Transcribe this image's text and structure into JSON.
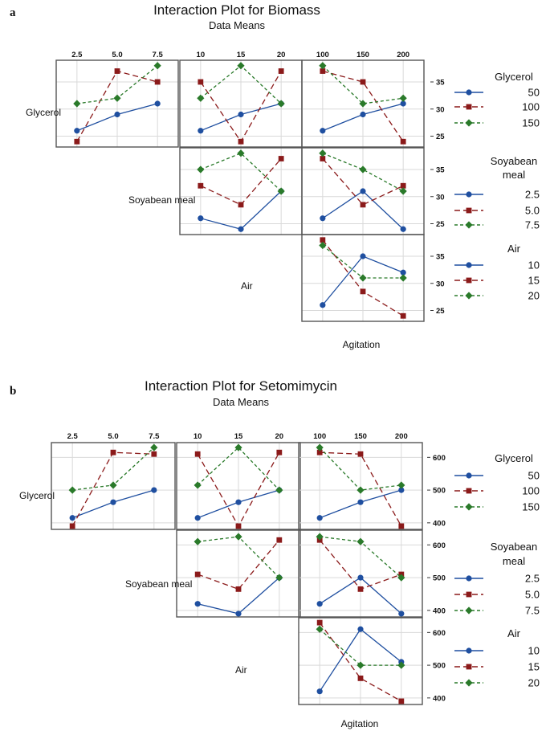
{
  "chart_data": [
    {
      "type": "line",
      "panel_letter": "a",
      "title": "Interaction Plot for Biomass",
      "subtitle": "Data Means",
      "xlabel": "Agitation",
      "y_ticks": [
        25,
        30,
        35
      ],
      "ylim": [
        23,
        39
      ],
      "factors": [
        {
          "name": "Glycerol",
          "levels": [
            "50",
            "100",
            "150"
          ]
        },
        {
          "name": "Soyabean meal",
          "levels": [
            "2.5",
            "5.0",
            "7.5"
          ]
        },
        {
          "name": "Air",
          "levels": [
            "10",
            "15",
            "20"
          ]
        },
        {
          "name": "Agitation",
          "levels": [
            "100",
            "150",
            "200"
          ]
        }
      ],
      "column_tick_labels": [
        [
          "2.5",
          "5.0",
          "7.5"
        ],
        [
          "10",
          "15",
          "20"
        ],
        [
          "100",
          "150",
          "200"
        ]
      ],
      "legends": [
        {
          "title": "Glycerol",
          "title_lines": [
            "Glycerol"
          ],
          "levels": [
            "50",
            "100",
            "150"
          ]
        },
        {
          "title": "Soyabean meal",
          "title_lines": [
            "Soyabean",
            "meal"
          ],
          "levels": [
            "2.5",
            "5.0",
            "7.5"
          ]
        },
        {
          "title": "Air",
          "title_lines": [
            "Air"
          ],
          "levels": [
            "10",
            "15",
            "20"
          ]
        }
      ],
      "cells": [
        {
          "row": 0,
          "col": 0,
          "series": [
            {
              "name": "50",
              "values": [
                26,
                29,
                31
              ]
            },
            {
              "name": "100",
              "values": [
                24,
                37,
                35
              ]
            },
            {
              "name": "150",
              "values": [
                31,
                32,
                38
              ]
            }
          ]
        },
        {
          "row": 0,
          "col": 1,
          "series": [
            {
              "name": "50",
              "values": [
                26,
                29,
                31
              ]
            },
            {
              "name": "100",
              "values": [
                35,
                24,
                37
              ]
            },
            {
              "name": "150",
              "values": [
                32,
                38,
                31
              ]
            }
          ]
        },
        {
          "row": 0,
          "col": 2,
          "series": [
            {
              "name": "50",
              "values": [
                26,
                29,
                31
              ]
            },
            {
              "name": "100",
              "values": [
                37,
                35,
                24
              ]
            },
            {
              "name": "150",
              "values": [
                38,
                31,
                32
              ]
            }
          ]
        },
        {
          "row": 1,
          "col": 1,
          "series": [
            {
              "name": "2.5",
              "values": [
                26,
                24,
                31
              ]
            },
            {
              "name": "5.0",
              "values": [
                32,
                28.5,
                37
              ]
            },
            {
              "name": "7.5",
              "values": [
                35,
                38,
                31
              ]
            }
          ]
        },
        {
          "row": 1,
          "col": 2,
          "series": [
            {
              "name": "2.5",
              "values": [
                26,
                31,
                24
              ]
            },
            {
              "name": "5.0",
              "values": [
                37,
                28.5,
                32
              ]
            },
            {
              "name": "7.5",
              "values": [
                38,
                35,
                31
              ]
            }
          ]
        },
        {
          "row": 2,
          "col": 2,
          "series": [
            {
              "name": "10",
              "values": [
                26,
                35,
                32
              ]
            },
            {
              "name": "15",
              "values": [
                38,
                28.5,
                24
              ]
            },
            {
              "name": "20",
              "values": [
                37,
                31,
                31
              ]
            }
          ]
        }
      ]
    },
    {
      "type": "line",
      "panel_letter": "b",
      "title": "Interaction Plot for Setomimycin",
      "subtitle": "Data Means",
      "xlabel": "Agitation",
      "y_ticks": [
        400,
        500,
        600
      ],
      "ylim": [
        380,
        645
      ],
      "factors": [
        {
          "name": "Glycerol",
          "levels": [
            "50",
            "100",
            "150"
          ]
        },
        {
          "name": "Soyabean meal",
          "levels": [
            "2.5",
            "5.0",
            "7.5"
          ]
        },
        {
          "name": "Air",
          "levels": [
            "10",
            "15",
            "20"
          ]
        },
        {
          "name": "Agitation",
          "levels": [
            "100",
            "150",
            "200"
          ]
        }
      ],
      "column_tick_labels": [
        [
          "2.5",
          "5.0",
          "7.5"
        ],
        [
          "10",
          "15",
          "20"
        ],
        [
          "100",
          "150",
          "200"
        ]
      ],
      "legends": [
        {
          "title": "Glycerol",
          "title_lines": [
            "Glycerol"
          ],
          "levels": [
            "50",
            "100",
            "150"
          ]
        },
        {
          "title": "Soyabean meal",
          "title_lines": [
            "Soyabean",
            "meal"
          ],
          "levels": [
            "2.5",
            "5.0",
            "7.5"
          ]
        },
        {
          "title": "Air",
          "title_lines": [
            "Air"
          ],
          "levels": [
            "10",
            "15",
            "20"
          ]
        }
      ],
      "cells": [
        {
          "row": 0,
          "col": 0,
          "series": [
            {
              "name": "50",
              "values": [
                415,
                463,
                500
              ]
            },
            {
              "name": "100",
              "values": [
                390,
                615,
                610
              ]
            },
            {
              "name": "150",
              "values": [
                500,
                515,
                630
              ]
            }
          ]
        },
        {
          "row": 0,
          "col": 1,
          "series": [
            {
              "name": "50",
              "values": [
                415,
                463,
                500
              ]
            },
            {
              "name": "100",
              "values": [
                610,
                390,
                615
              ]
            },
            {
              "name": "150",
              "values": [
                515,
                630,
                500
              ]
            }
          ]
        },
        {
          "row": 0,
          "col": 2,
          "series": [
            {
              "name": "50",
              "values": [
                415,
                463,
                500
              ]
            },
            {
              "name": "100",
              "values": [
                615,
                610,
                390
              ]
            },
            {
              "name": "150",
              "values": [
                630,
                500,
                515
              ]
            }
          ]
        },
        {
          "row": 1,
          "col": 1,
          "series": [
            {
              "name": "2.5",
              "values": [
                420,
                390,
                500
              ]
            },
            {
              "name": "5.0",
              "values": [
                510,
                465,
                615
              ]
            },
            {
              "name": "7.5",
              "values": [
                610,
                625,
                500
              ]
            }
          ]
        },
        {
          "row": 1,
          "col": 2,
          "series": [
            {
              "name": "2.5",
              "values": [
                420,
                500,
                390
              ]
            },
            {
              "name": "5.0",
              "values": [
                615,
                465,
                510
              ]
            },
            {
              "name": "7.5",
              "values": [
                625,
                610,
                500
              ]
            }
          ]
        },
        {
          "row": 2,
          "col": 2,
          "series": [
            {
              "name": "10",
              "values": [
                420,
                610,
                510
              ]
            },
            {
              "name": "15",
              "values": [
                630,
                460,
                390
              ]
            },
            {
              "name": "20",
              "values": [
                610,
                500,
                500
              ]
            }
          ]
        }
      ]
    }
  ],
  "series_style": [
    {
      "color": "#1f4fa0",
      "marker": "circle",
      "dash": "solid"
    },
    {
      "color": "#8b1a1a",
      "marker": "square",
      "dash": "long-dash"
    },
    {
      "color": "#2a7a2a",
      "marker": "diamond",
      "dash": "short-dash"
    }
  ],
  "grid_color": "#d9d9d9",
  "frame_color": "#555555"
}
